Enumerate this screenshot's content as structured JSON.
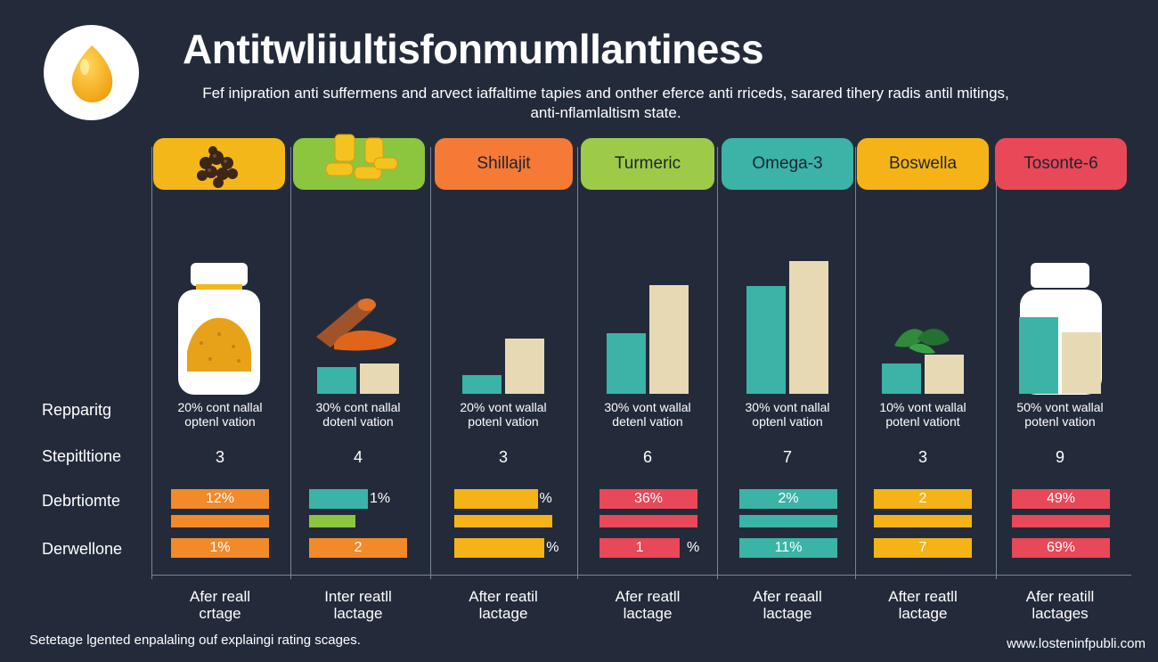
{
  "header": {
    "title": "Antitwliiultisfonmumllantiness",
    "subtitle_line1": "Fef inipration anti suffermens and arvect iaffaltime tapies and onther eferce anti rriceds, sarared tihery radis antil mitings,",
    "subtitle_line2": "anti-nflamlaltism state."
  },
  "columns": [
    {
      "label": "",
      "color": "#f3b71a",
      "ring_color": "#f3b71a",
      "bar_a": 0,
      "bar_b": 0,
      "note_line1": "20% cont nallal",
      "note_line2": "optenl vation",
      "stepitione": "3",
      "bar1_label": "12%",
      "bar1_color": "#f28a2a",
      "bar1_value": 1.0,
      "thin_color": "#f28a2a",
      "bar2_label": "1%",
      "bar2_color": "#f28a2a",
      "bar2_value": 1.0,
      "bottom_line1": "Afer reall",
      "bottom_line2": "crtage"
    },
    {
      "label": "",
      "color": "#8cc63f",
      "ring_color": "#8cc63f",
      "bar_a": 0.23,
      "bar_b": 0.26,
      "note_line1": "30% cont nallal",
      "note_line2": "dotenl vation",
      "stepitione": "4",
      "bar1_label": "1%",
      "bar1_color": "#3bb3a7",
      "bar1_value": 0.6,
      "thin_color": "#8cc63f",
      "bar2_label": "2",
      "bar2_color": "#f28a2a",
      "bar2_value": 1.0,
      "bottom_line1": "Inter reatll",
      "bottom_line2": "lactage"
    },
    {
      "label": "Shillajit",
      "color": "#f47a35",
      "ring_color": "#f47a35",
      "bar_a": 0.16,
      "bar_b": 0.48,
      "note_line1": "20% vont wallal",
      "note_line2": "potenl vation",
      "stepitione": "3",
      "bar1_label": "%",
      "bar1_color": "#f5b318",
      "bar1_value": 0.85,
      "thin_color": "#f5b318",
      "bar2_label": "%",
      "bar2_color": "#f5b318",
      "bar2_value": 0.92,
      "bottom_line1": "After reatil",
      "bottom_line2": "lactage"
    },
    {
      "label": "Turmeric",
      "color": "#9dcb49",
      "ring_color": "#9dcb49",
      "bar_a": 0.52,
      "bar_b": 0.94,
      "note_line1": "30% vont wallal",
      "note_line2": "detenl vation",
      "stepitione": "6",
      "bar1_label": "36%",
      "bar1_color": "#e84857",
      "bar1_value": 1.0,
      "thin_color": "#e84857",
      "bar2_label": "1",
      "bar2_color": "#e84857",
      "bar2_value": 0.82,
      "bottom_line1": "Afer reatll",
      "bottom_line2": "lactage"
    },
    {
      "label": "Omega-3",
      "color": "#3bb3a7",
      "ring_color": "#3bb3a7",
      "bar_a": 0.93,
      "bar_b": 1.15,
      "note_line1": "30% vont nallal",
      "note_line2": "optenl vation",
      "stepitione": "7",
      "bar1_label": "2%",
      "bar1_color": "#3bb3a7",
      "bar1_value": 1.0,
      "thin_color": "#3bb3a7",
      "bar2_label": "11%",
      "bar2_color": "#3bb3a7",
      "bar2_value": 1.0,
      "bottom_line1": "Afer reaall",
      "bottom_line2": "lactage"
    },
    {
      "label": "Boswella",
      "color": "#f5b318",
      "ring_color": "#f5b318",
      "bar_a": 0.26,
      "bar_b": 0.34,
      "note_line1": "10% vont wallal",
      "note_line2": "potenl vationt",
      "stepitione": "3",
      "bar1_label": "2",
      "bar1_color": "#f5b318",
      "bar1_value": 1.0,
      "thin_color": "#f5b318",
      "bar2_label": "7",
      "bar2_color": "#f5b318",
      "bar2_value": 1.0,
      "bottom_line1": "After reatll",
      "bottom_line2": "lactage"
    },
    {
      "label": "Tosonte-6",
      "color": "#e84857",
      "ring_color": "#e84857",
      "bar_a": 0.66,
      "bar_b": 0.53,
      "note_line1": "50% vont wallal",
      "note_line2": "potenl vation",
      "stepitione": "9",
      "bar1_label": "49%",
      "bar1_color": "#e84857",
      "bar1_value": 1.0,
      "thin_color": "#e84857",
      "bar2_label": "69%",
      "bar2_color": "#e84857",
      "bar2_value": 1.0,
      "bottom_line1": "Afer reatill",
      "bottom_line2": "lactages"
    }
  ],
  "rows": {
    "r1": "Repparitg",
    "r2": "Stepitltione",
    "r3": "Debrtiomte",
    "r4": "Derwellone"
  },
  "footer": {
    "left": "Setetage lgented enpalaling ouf explaingi rating scages.",
    "right": "www.losteninfpubli.com"
  },
  "colors": {
    "background": "#232b3b",
    "teal": "#3bb3a7",
    "cream": "#e8d9b5"
  }
}
